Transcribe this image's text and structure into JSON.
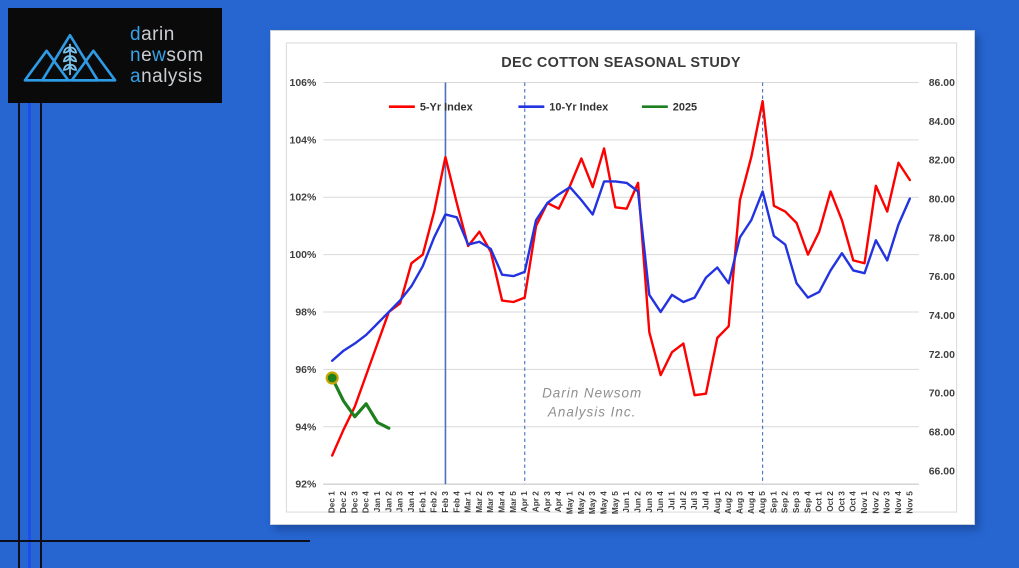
{
  "logo": {
    "accent_color": "#35A2E8",
    "text_color": "#C9CDD1",
    "lines": [
      [
        {
          "t": "d",
          "hl": true
        },
        {
          "t": "arin",
          "hl": false
        }
      ],
      [
        {
          "t": "n",
          "hl": true
        },
        {
          "t": "e",
          "hl": false
        },
        {
          "t": "w",
          "hl": true
        },
        {
          "t": "som",
          "hl": false
        }
      ],
      [
        {
          "t": "a",
          "hl": true
        },
        {
          "t": "nalysis",
          "hl": false
        }
      ]
    ]
  },
  "chart_data": {
    "type": "line",
    "title": "DEC COTTON SEASONAL STUDY",
    "legend_position": "top",
    "grid": true,
    "x_labels": [
      "Dec 1",
      "Dec 2",
      "Dec 3",
      "Dec 4",
      "Jan 1",
      "Jan 2",
      "Jan 3",
      "Jan 4",
      "Feb 1",
      "Feb 2",
      "Feb 3",
      "Feb 4",
      "Mar 1",
      "Mar 2",
      "Mar 3",
      "Mar 4",
      "Mar 5",
      "Apr 1",
      "Apr 2",
      "Apr 3",
      "Apr 4",
      "May 1",
      "May 2",
      "May 3",
      "May 4",
      "May 5",
      "Jun 1",
      "Jun 2",
      "Jun 3",
      "Jun 4",
      "Jul 1",
      "Jul 2",
      "Jul 3",
      "Jul 4",
      "Aug 1",
      "Aug 2",
      "Aug 3",
      "Aug 4",
      "Aug 5",
      "Sep 1",
      "Sep 2",
      "Sep 3",
      "Sep 4",
      "Oct 1",
      "Oct 2",
      "Oct 3",
      "Oct 4",
      "Nov 1",
      "Nov 2",
      "Nov 3",
      "Nov 4",
      "Nov 5"
    ],
    "y_axis_left": {
      "min": 92,
      "max": 106,
      "step": 2,
      "ticks": [
        "92%",
        "94%",
        "96%",
        "98%",
        "100%",
        "102%",
        "104%",
        "106%"
      ]
    },
    "y_axis_right": {
      "min": 66,
      "max": 86,
      "step": 2,
      "ticks": [
        "66.00",
        "68.00",
        "70.00",
        "72.00",
        "74.00",
        "76.00",
        "78.00",
        "80.00",
        "82.00",
        "84.00",
        "86.00"
      ]
    },
    "series": [
      {
        "name": "5-Yr Index",
        "color": "#FE0000",
        "width": 2.4,
        "values": [
          93.0,
          93.9,
          94.7,
          95.8,
          96.9,
          98.0,
          98.3,
          99.7,
          100.0,
          101.5,
          103.4,
          101.8,
          100.3,
          100.8,
          100.1,
          98.4,
          98.35,
          98.5,
          101.0,
          101.8,
          101.6,
          102.4,
          103.35,
          102.35,
          103.7,
          101.65,
          101.6,
          102.5,
          97.3,
          95.8,
          96.6,
          96.9,
          95.1,
          95.15,
          97.1,
          97.5,
          101.9,
          103.4,
          105.35,
          101.7,
          101.5,
          101.1,
          100.0,
          100.8,
          102.2,
          101.2,
          99.8,
          99.7,
          102.4,
          101.5,
          103.2,
          102.6
        ]
      },
      {
        "name": "10-Yr Index",
        "color": "#2333E0",
        "width": 2.4,
        "values": [
          96.3,
          96.65,
          96.9,
          97.2,
          97.6,
          98.0,
          98.4,
          98.9,
          99.6,
          100.6,
          101.4,
          101.3,
          100.35,
          100.45,
          100.2,
          99.3,
          99.25,
          99.4,
          101.2,
          101.8,
          102.1,
          102.35,
          101.9,
          101.4,
          102.55,
          102.55,
          102.5,
          102.2,
          98.6,
          98.0,
          98.6,
          98.35,
          98.5,
          99.2,
          99.55,
          99.0,
          100.6,
          101.2,
          102.2,
          100.65,
          100.35,
          99.0,
          98.5,
          98.7,
          99.45,
          100.05,
          99.45,
          99.35,
          100.5,
          99.8,
          101.05,
          101.95
        ]
      },
      {
        "name": "2025",
        "color": "#1E7F1E",
        "width": 3.2,
        "marker_first": true,
        "marker_stroke": "#C7A500",
        "values": [
          95.7,
          94.9,
          94.35,
          94.8,
          94.15,
          93.95
        ]
      }
    ],
    "vlines": [
      {
        "label": "Feb 3",
        "index": 10,
        "style": "solid",
        "color": "#4C6FBE"
      },
      {
        "label": "Apr 1",
        "index": 17,
        "style": "dashed",
        "color": "#4472C4"
      },
      {
        "label": "Aug 5",
        "index": 38,
        "style": "dashed",
        "color": "#4472C4"
      }
    ],
    "watermark": [
      "Darin Newsom",
      "Analysis Inc."
    ]
  }
}
